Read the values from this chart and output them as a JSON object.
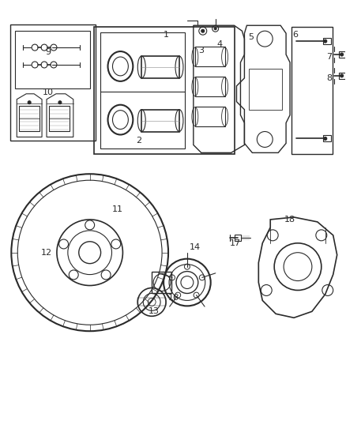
{
  "bg_color": "#ffffff",
  "line_color": "#2a2a2a",
  "lw": 0.8,
  "fig_w": 4.38,
  "fig_h": 5.33,
  "dpi": 100,
  "labels": [
    [
      "9",
      60,
      468
    ],
    [
      "10",
      60,
      417
    ],
    [
      "1",
      210,
      490
    ],
    [
      "2",
      175,
      355
    ],
    [
      "3",
      255,
      470
    ],
    [
      "4",
      278,
      478
    ],
    [
      "5",
      318,
      487
    ],
    [
      "6",
      375,
      490
    ],
    [
      "7",
      418,
      462
    ],
    [
      "8",
      418,
      435
    ],
    [
      "11",
      148,
      268
    ],
    [
      "12",
      58,
      213
    ],
    [
      "13",
      195,
      138
    ],
    [
      "14",
      247,
      220
    ],
    [
      "16",
      220,
      155
    ],
    [
      "17",
      298,
      225
    ],
    [
      "18",
      368,
      255
    ]
  ]
}
